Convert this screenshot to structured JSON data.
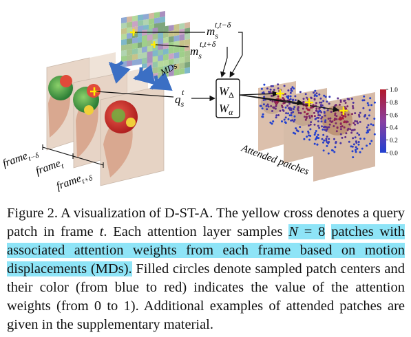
{
  "figure": {
    "labels": {
      "m_prev_base": "m",
      "m_prev_sub": "s",
      "m_prev_sup": "t,t−δ",
      "m_next_base": "m",
      "m_next_sub": "s",
      "m_next_sup": "t,t+δ",
      "mds": "MDs",
      "q_base": "q",
      "q_sub": "s",
      "q_sup": "t",
      "w_delta": "W",
      "w_delta_sub": "Δ",
      "w_alpha": "W",
      "w_alpha_sub": "α",
      "frame_prev": "frame",
      "frame_prev_sub": "t−δ",
      "frame_cur": "frame",
      "frame_cur_sub": "t",
      "frame_next": "frame",
      "frame_next_sub": "t+δ",
      "attended": "Attended patches"
    },
    "colorbar": {
      "ticks": [
        "1.0",
        "0.8",
        "0.6",
        "0.4",
        "0.2",
        "0.0"
      ],
      "top_color": "#b2182b",
      "bottom_color": "#2140d0"
    },
    "colors": {
      "query_cross": "#ffee00",
      "mds_arrow": "#3b6fc4",
      "skin": "#d9b8a2",
      "ball_red": "#cc2a2a",
      "ball_green": "#3fa04a"
    }
  },
  "caption": {
    "part1": "Figure 2.  A visualization of D-ST-A. The yellow cross denotes a query patch in frame ",
    "t": "t",
    "part2": ".  Each attention layer samples ",
    "highlight1_N": "N",
    "highlight1_eq": " = 8",
    "highlight2": "patches with associated attention weights from each frame based on motion displacements (MDs).",
    "part3": " Filled circles denote sampled patch centers and their color (from blue to red) indicates the value of the attention weights (from 0 to 1).  Additional examples of attended patches are given in the supplementary material."
  }
}
